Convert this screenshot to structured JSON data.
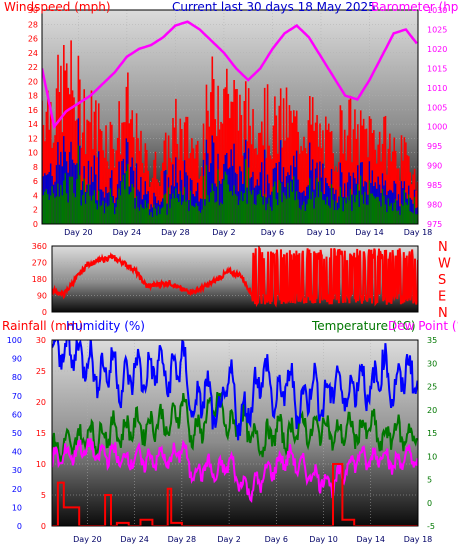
{
  "header": {
    "left_label": "Windspeed (mph)",
    "center_label": "Current last 30 days 18 May 2025",
    "right_label": "Barometer (hpa)"
  },
  "x_ticks": [
    "Day 20",
    "Day 24",
    "Day 28",
    "Day 2",
    "Day 6",
    "Day 10",
    "Day 14",
    "Day 18"
  ],
  "colors": {
    "wind_gust": "#ff0000",
    "wind_avg": "#0000cc",
    "wind_low": "#007700",
    "barometer": "#ff00ff",
    "direction": "#ff0000",
    "temperature": "#007700",
    "humidity": "#0000ff",
    "dewpoint": "#ff00ff",
    "rainfall": "#ff0000",
    "axis_left": "#ff0000",
    "axis_right": "#ff00ff"
  },
  "chart_data": [
    {
      "id": "wind_baro",
      "type": "line",
      "yleft_label": "Windspeed (mph)",
      "yleft_ticks": [
        0,
        2,
        4,
        6,
        8,
        10,
        12,
        14,
        16,
        18,
        20,
        22,
        24,
        26,
        28,
        30
      ],
      "yleft_lim": [
        0,
        30
      ],
      "yright_label": "Barometer (hpa)",
      "yright_ticks": [
        975,
        980,
        985,
        990,
        995,
        1000,
        1005,
        1010,
        1015,
        1020,
        1025,
        1030
      ],
      "yright_lim": [
        975,
        1030
      ],
      "x_ticks": [
        "Day 20",
        "Day 24",
        "Day 28",
        "Day 2",
        "Day 6",
        "Day 10",
        "Day 14",
        "Day 18"
      ],
      "barometer_points": [
        {
          "day": 17,
          "hpa": 1015
        },
        {
          "day": 18,
          "hpa": 1000
        },
        {
          "day": 19,
          "hpa": 1004
        },
        {
          "day": 20,
          "hpa": 1006
        },
        {
          "day": 21,
          "hpa": 1008
        },
        {
          "day": 22,
          "hpa": 1011
        },
        {
          "day": 23,
          "hpa": 1014
        },
        {
          "day": 24,
          "hpa": 1018
        },
        {
          "day": 25,
          "hpa": 1020
        },
        {
          "day": 26,
          "hpa": 1021
        },
        {
          "day": 27,
          "hpa": 1023
        },
        {
          "day": 28,
          "hpa": 1026
        },
        {
          "day": 29,
          "hpa": 1027
        },
        {
          "day": 30,
          "hpa": 1025
        },
        {
          "day": 31,
          "hpa": 1022
        },
        {
          "day": 32,
          "hpa": 1019
        },
        {
          "day": 33,
          "hpa": 1015
        },
        {
          "day": 34,
          "hpa": 1012
        },
        {
          "day": 35,
          "hpa": 1015
        },
        {
          "day": 36,
          "hpa": 1020
        },
        {
          "day": 37,
          "hpa": 1024
        },
        {
          "day": 38,
          "hpa": 1026
        },
        {
          "day": 39,
          "hpa": 1023
        },
        {
          "day": 40,
          "hpa": 1018
        },
        {
          "day": 41,
          "hpa": 1013
        },
        {
          "day": 42,
          "hpa": 1008
        },
        {
          "day": 43,
          "hpa": 1007
        },
        {
          "day": 44,
          "hpa": 1012
        },
        {
          "day": 45,
          "hpa": 1018
        },
        {
          "day": 46,
          "hpa": 1024
        },
        {
          "day": 47,
          "hpa": 1025
        },
        {
          "day": 48,
          "hpa": 1021
        }
      ],
      "gust_envelope": [
        {
          "day": 17,
          "mph": 24
        },
        {
          "day": 18,
          "mph": 22
        },
        {
          "day": 19,
          "mph": 28
        },
        {
          "day": 20,
          "mph": 24
        },
        {
          "day": 21,
          "mph": 20
        },
        {
          "day": 22,
          "mph": 18
        },
        {
          "day": 23,
          "mph": 16
        },
        {
          "day": 24,
          "mph": 22
        },
        {
          "day": 25,
          "mph": 14
        },
        {
          "day": 26,
          "mph": 10
        },
        {
          "day": 27,
          "mph": 12
        },
        {
          "day": 28,
          "mph": 18
        },
        {
          "day": 29,
          "mph": 16
        },
        {
          "day": 30,
          "mph": 14
        },
        {
          "day": 31,
          "mph": 24
        },
        {
          "day": 32,
          "mph": 28
        },
        {
          "day": 33,
          "mph": 22
        },
        {
          "day": 34,
          "mph": 20
        },
        {
          "day": 35,
          "mph": 22
        },
        {
          "day": 36,
          "mph": 18
        },
        {
          "day": 37,
          "mph": 20
        },
        {
          "day": 38,
          "mph": 18
        },
        {
          "day": 39,
          "mph": 20
        },
        {
          "day": 40,
          "mph": 16
        },
        {
          "day": 41,
          "mph": 14
        },
        {
          "day": 42,
          "mph": 20
        },
        {
          "day": 43,
          "mph": 16
        },
        {
          "day": 44,
          "mph": 18
        },
        {
          "day": 45,
          "mph": 16
        },
        {
          "day": 46,
          "mph": 14
        },
        {
          "day": 47,
          "mph": 12
        },
        {
          "day": 48,
          "mph": 10
        }
      ]
    },
    {
      "id": "direction",
      "type": "line",
      "yleft_ticks": [
        0,
        90,
        180,
        270,
        360
      ],
      "yleft_lim": [
        0,
        360
      ],
      "compass_labels": [
        "N",
        "W",
        "S",
        "E",
        "N"
      ],
      "x_ticks": [
        "Day 20",
        "Day 24",
        "Day 28",
        "Day 2",
        "Day 6",
        "Day 10",
        "Day 14",
        "Day 18"
      ],
      "direction_points": [
        {
          "day": 17,
          "deg": 120
        },
        {
          "day": 18,
          "deg": 95
        },
        {
          "day": 19,
          "deg": 180
        },
        {
          "day": 20,
          "deg": 260
        },
        {
          "day": 21,
          "deg": 280
        },
        {
          "day": 22,
          "deg": 300
        },
        {
          "day": 23,
          "deg": 270
        },
        {
          "day": 24,
          "deg": 230
        },
        {
          "day": 25,
          "deg": 140
        },
        {
          "day": 26,
          "deg": 150
        },
        {
          "day": 27,
          "deg": 160
        },
        {
          "day": 28,
          "deg": 120
        },
        {
          "day": 29,
          "deg": 110
        },
        {
          "day": 30,
          "deg": 140
        },
        {
          "day": 31,
          "deg": 180
        },
        {
          "day": 32,
          "deg": 220
        },
        {
          "day": 33,
          "deg": 200
        },
        {
          "day": 34,
          "deg": 90
        },
        {
          "day": 35,
          "deg": 300
        },
        {
          "day": 36,
          "deg": 60
        },
        {
          "day": 37,
          "deg": 330
        },
        {
          "day": 38,
          "deg": 40
        },
        {
          "day": 39,
          "deg": 300
        },
        {
          "day": 40,
          "deg": 80
        },
        {
          "day": 41,
          "deg": 320
        },
        {
          "day": 42,
          "deg": 50
        },
        {
          "day": 43,
          "deg": 290
        },
        {
          "day": 44,
          "deg": 70
        },
        {
          "day": 45,
          "deg": 310
        },
        {
          "day": 46,
          "deg": 60
        },
        {
          "day": 47,
          "deg": 300
        },
        {
          "day": 48,
          "deg": 80
        }
      ]
    },
    {
      "id": "temp_hum_rain",
      "type": "line",
      "header_left_rain": "Rainfall (mm)",
      "header_left_hum": "Humidity (%)",
      "header_right_temp": "Temperature (°C)",
      "header_right_dew": "Dew Point (°C)",
      "humidity_ticks": [
        0,
        10,
        20,
        30,
        40,
        50,
        60,
        70,
        80,
        90,
        100
      ],
      "humidity_lim": [
        0,
        100
      ],
      "rain_ticks": [
        0,
        5,
        10,
        15,
        20,
        25,
        30
      ],
      "rain_lim": [
        0,
        30
      ],
      "temp_ticks": [
        -5,
        0,
        5,
        10,
        15,
        20,
        25,
        30,
        35
      ],
      "temp_lim": [
        -5,
        35
      ],
      "x_ticks": [
        "Day 20",
        "Day 24",
        "Day 28",
        "Day 2",
        "Day 6",
        "Day 10",
        "Day 14",
        "Day 18"
      ],
      "humidity_points": [
        {
          "day": 17,
          "pct": 94
        },
        {
          "day": 18,
          "pct": 95
        },
        {
          "day": 19,
          "pct": 93
        },
        {
          "day": 20,
          "pct": 90
        },
        {
          "day": 21,
          "pct": 80
        },
        {
          "day": 22,
          "pct": 88
        },
        {
          "day": 23,
          "pct": 75
        },
        {
          "day": 24,
          "pct": 85
        },
        {
          "day": 25,
          "pct": 80
        },
        {
          "day": 26,
          "pct": 88
        },
        {
          "day": 27,
          "pct": 78
        },
        {
          "day": 28,
          "pct": 92
        },
        {
          "day": 29,
          "pct": 60
        },
        {
          "day": 30,
          "pct": 75
        },
        {
          "day": 31,
          "pct": 55
        },
        {
          "day": 32,
          "pct": 80
        },
        {
          "day": 33,
          "pct": 55
        },
        {
          "day": 34,
          "pct": 70
        },
        {
          "day": 35,
          "pct": 85
        },
        {
          "day": 36,
          "pct": 65
        },
        {
          "day": 37,
          "pct": 80
        },
        {
          "day": 38,
          "pct": 62
        },
        {
          "day": 39,
          "pct": 78
        },
        {
          "day": 40,
          "pct": 65
        },
        {
          "day": 41,
          "pct": 80
        },
        {
          "day": 42,
          "pct": 68
        },
        {
          "day": 43,
          "pct": 82
        },
        {
          "day": 44,
          "pct": 70
        },
        {
          "day": 45,
          "pct": 88
        },
        {
          "day": 46,
          "pct": 72
        },
        {
          "day": 47,
          "pct": 85
        },
        {
          "day": 48,
          "pct": 78
        }
      ],
      "temperature_points": [
        {
          "day": 17,
          "c": 11
        },
        {
          "day": 18,
          "c": 12
        },
        {
          "day": 19,
          "c": 13
        },
        {
          "day": 20,
          "c": 15
        },
        {
          "day": 21,
          "c": 14
        },
        {
          "day": 22,
          "c": 16
        },
        {
          "day": 23,
          "c": 15
        },
        {
          "day": 24,
          "c": 17
        },
        {
          "day": 25,
          "c": 16
        },
        {
          "day": 26,
          "c": 18
        },
        {
          "day": 27,
          "c": 16
        },
        {
          "day": 28,
          "c": 22
        },
        {
          "day": 29,
          "c": 14
        },
        {
          "day": 30,
          "c": 18
        },
        {
          "day": 31,
          "c": 22
        },
        {
          "day": 32,
          "c": 16
        },
        {
          "day": 33,
          "c": 18
        },
        {
          "day": 34,
          "c": 14
        },
        {
          "day": 35,
          "c": 13
        },
        {
          "day": 36,
          "c": 16
        },
        {
          "day": 37,
          "c": 14
        },
        {
          "day": 38,
          "c": 17
        },
        {
          "day": 39,
          "c": 15
        },
        {
          "day": 40,
          "c": 17
        },
        {
          "day": 41,
          "c": 14
        },
        {
          "day": 42,
          "c": 16
        },
        {
          "day": 43,
          "c": 15
        },
        {
          "day": 44,
          "c": 17
        },
        {
          "day": 45,
          "c": 13
        },
        {
          "day": 46,
          "c": 16
        },
        {
          "day": 47,
          "c": 14
        },
        {
          "day": 48,
          "c": 15
        }
      ],
      "dewpoint_points": [
        {
          "day": 17,
          "c": 9
        },
        {
          "day": 18,
          "c": 10
        },
        {
          "day": 19,
          "c": 11
        },
        {
          "day": 20,
          "c": 12
        },
        {
          "day": 21,
          "c": 10
        },
        {
          "day": 22,
          "c": 11
        },
        {
          "day": 23,
          "c": 9
        },
        {
          "day": 24,
          "c": 10
        },
        {
          "day": 25,
          "c": 9
        },
        {
          "day": 26,
          "c": 10
        },
        {
          "day": 27,
          "c": 9
        },
        {
          "day": 28,
          "c": 12
        },
        {
          "day": 29,
          "c": 6
        },
        {
          "day": 30,
          "c": 8
        },
        {
          "day": 31,
          "c": 6
        },
        {
          "day": 32,
          "c": 9
        },
        {
          "day": 33,
          "c": 4
        },
        {
          "day": 34,
          "c": 3
        },
        {
          "day": 35,
          "c": 6
        },
        {
          "day": 36,
          "c": 8
        },
        {
          "day": 37,
          "c": 10
        },
        {
          "day": 38,
          "c": 8
        },
        {
          "day": 39,
          "c": 6
        },
        {
          "day": 40,
          "c": 5
        },
        {
          "day": 41,
          "c": 4
        },
        {
          "day": 42,
          "c": 8
        },
        {
          "day": 43,
          "c": 10
        },
        {
          "day": 44,
          "c": 9
        },
        {
          "day": 45,
          "c": 11
        },
        {
          "day": 46,
          "c": 8
        },
        {
          "day": 47,
          "c": 10
        },
        {
          "day": 48,
          "c": 9
        }
      ],
      "rainfall_steps": [
        {
          "day": 17,
          "mm": 0
        },
        {
          "day": 17.5,
          "mm": 7
        },
        {
          "day": 18,
          "mm": 3
        },
        {
          "day": 19.3,
          "mm": 0
        },
        {
          "day": 21,
          "mm": 0
        },
        {
          "day": 21.5,
          "mm": 5
        },
        {
          "day": 22,
          "mm": 0
        },
        {
          "day": 22.5,
          "mm": 0.5
        },
        {
          "day": 23.5,
          "mm": 0
        },
        {
          "day": 24.5,
          "mm": 1
        },
        {
          "day": 25.5,
          "mm": 0
        },
        {
          "day": 26.5,
          "mm": 0
        },
        {
          "day": 26.8,
          "mm": 6
        },
        {
          "day": 27.1,
          "mm": 0.5
        },
        {
          "day": 28,
          "mm": 0
        },
        {
          "day": 40.5,
          "mm": 0
        },
        {
          "day": 40.8,
          "mm": 10
        },
        {
          "day": 41.6,
          "mm": 1
        },
        {
          "day": 42.6,
          "mm": 0
        },
        {
          "day": 48,
          "mm": 0
        }
      ]
    }
  ]
}
